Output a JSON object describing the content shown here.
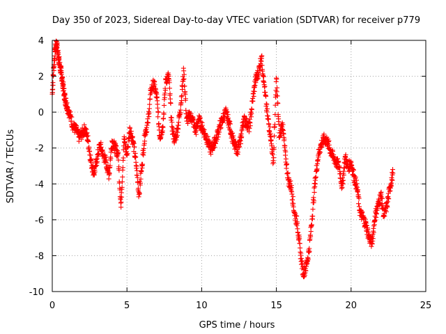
{
  "chart_data": {
    "type": "scatter",
    "title": "Day 350 of 2023, Sidereal Day-to-day VTEC variation (SDTVAR) for receiver p779",
    "xlabel": "GPS time / hours",
    "ylabel": "SDTVAR / TECUs",
    "xlim": [
      0,
      25
    ],
    "ylim": [
      -10,
      4
    ],
    "x_ticks": [
      0,
      5,
      10,
      15,
      20,
      25
    ],
    "y_ticks": [
      -10,
      -8,
      -6,
      -4,
      -2,
      0,
      2,
      4
    ],
    "x_tick_labels": [
      "0",
      "5",
      "10",
      "15",
      "20",
      "25"
    ],
    "y_tick_labels": [
      "-10",
      "-8",
      "-6",
      "-4",
      "-2",
      "0",
      "2",
      "4"
    ],
    "grid": true,
    "marker": "+",
    "series": [
      {
        "name": "SDTVAR",
        "color": "#ff0000",
        "x": [
          0.0,
          0.1,
          0.2,
          0.3,
          0.4,
          0.5,
          0.6,
          0.7,
          0.8,
          0.9,
          1.0,
          1.2,
          1.4,
          1.6,
          1.8,
          2.0,
          2.2,
          2.4,
          2.6,
          2.8,
          3.0,
          3.2,
          3.4,
          3.6,
          3.8,
          4.0,
          4.2,
          4.4,
          4.6,
          4.8,
          5.0,
          5.2,
          5.4,
          5.6,
          5.8,
          6.0,
          6.2,
          6.4,
          6.6,
          6.8,
          7.0,
          7.2,
          7.4,
          7.6,
          7.8,
          8.0,
          8.2,
          8.4,
          8.6,
          8.8,
          9.0,
          9.2,
          9.4,
          9.6,
          9.8,
          10.0,
          10.2,
          10.4,
          10.6,
          10.8,
          11.0,
          11.2,
          11.4,
          11.6,
          11.8,
          12.0,
          12.2,
          12.4,
          12.6,
          12.8,
          13.0,
          13.2,
          13.4,
          13.6,
          13.8,
          14.0,
          14.2,
          14.4,
          14.6,
          14.8,
          15.0,
          15.2,
          15.4,
          15.6,
          15.8,
          16.0,
          16.2,
          16.4,
          16.6,
          16.8,
          17.0,
          17.2,
          17.4,
          17.6,
          17.8,
          18.0,
          18.2,
          18.4,
          18.6,
          18.8,
          19.0,
          19.2,
          19.4,
          19.6,
          19.8,
          20.0,
          20.2,
          20.4,
          20.6,
          20.8,
          21.0,
          21.2,
          21.4,
          21.6,
          21.8,
          22.0,
          22.2,
          22.4,
          22.6,
          22.8
        ],
        "y": [
          1.0,
          2.5,
          3.5,
          3.8,
          3.2,
          2.6,
          2.2,
          1.6,
          1.0,
          0.6,
          0.3,
          -0.2,
          -0.8,
          -1.0,
          -1.4,
          -1.2,
          -0.9,
          -1.6,
          -2.8,
          -3.4,
          -2.6,
          -1.8,
          -2.4,
          -2.8,
          -3.5,
          -1.6,
          -2.0,
          -2.3,
          -5.3,
          -1.5,
          -2.4,
          -0.9,
          -1.6,
          -2.8,
          -4.6,
          -3.0,
          -1.2,
          -0.6,
          1.2,
          1.6,
          0.8,
          -1.4,
          -0.8,
          1.8,
          2.0,
          -0.8,
          -1.6,
          -0.9,
          0.4,
          2.3,
          -0.5,
          -0.2,
          -0.4,
          -1.1,
          -0.4,
          -0.8,
          -1.2,
          -1.6,
          -2.1,
          -1.8,
          -1.4,
          -0.8,
          -0.4,
          0.0,
          -0.5,
          -1.2,
          -1.9,
          -2.1,
          -1.6,
          -0.4,
          -0.6,
          -0.9,
          0.6,
          1.8,
          2.2,
          3.1,
          1.4,
          -0.2,
          -1.2,
          -2.8,
          1.9,
          -1.4,
          -0.6,
          -2.4,
          -3.8,
          -4.2,
          -5.6,
          -6.2,
          -7.8,
          -9.0,
          -8.6,
          -7.6,
          -5.8,
          -3.8,
          -2.4,
          -1.8,
          -1.5,
          -1.6,
          -2.1,
          -2.5,
          -2.8,
          -3.0,
          -4.2,
          -2.5,
          -3.1,
          -2.8,
          -3.6,
          -4.2,
          -5.6,
          -5.9,
          -6.3,
          -7.0,
          -7.3,
          -5.8,
          -5.2,
          -4.6,
          -5.8,
          -5.2,
          -4.2,
          -3.4
        ]
      }
    ]
  }
}
